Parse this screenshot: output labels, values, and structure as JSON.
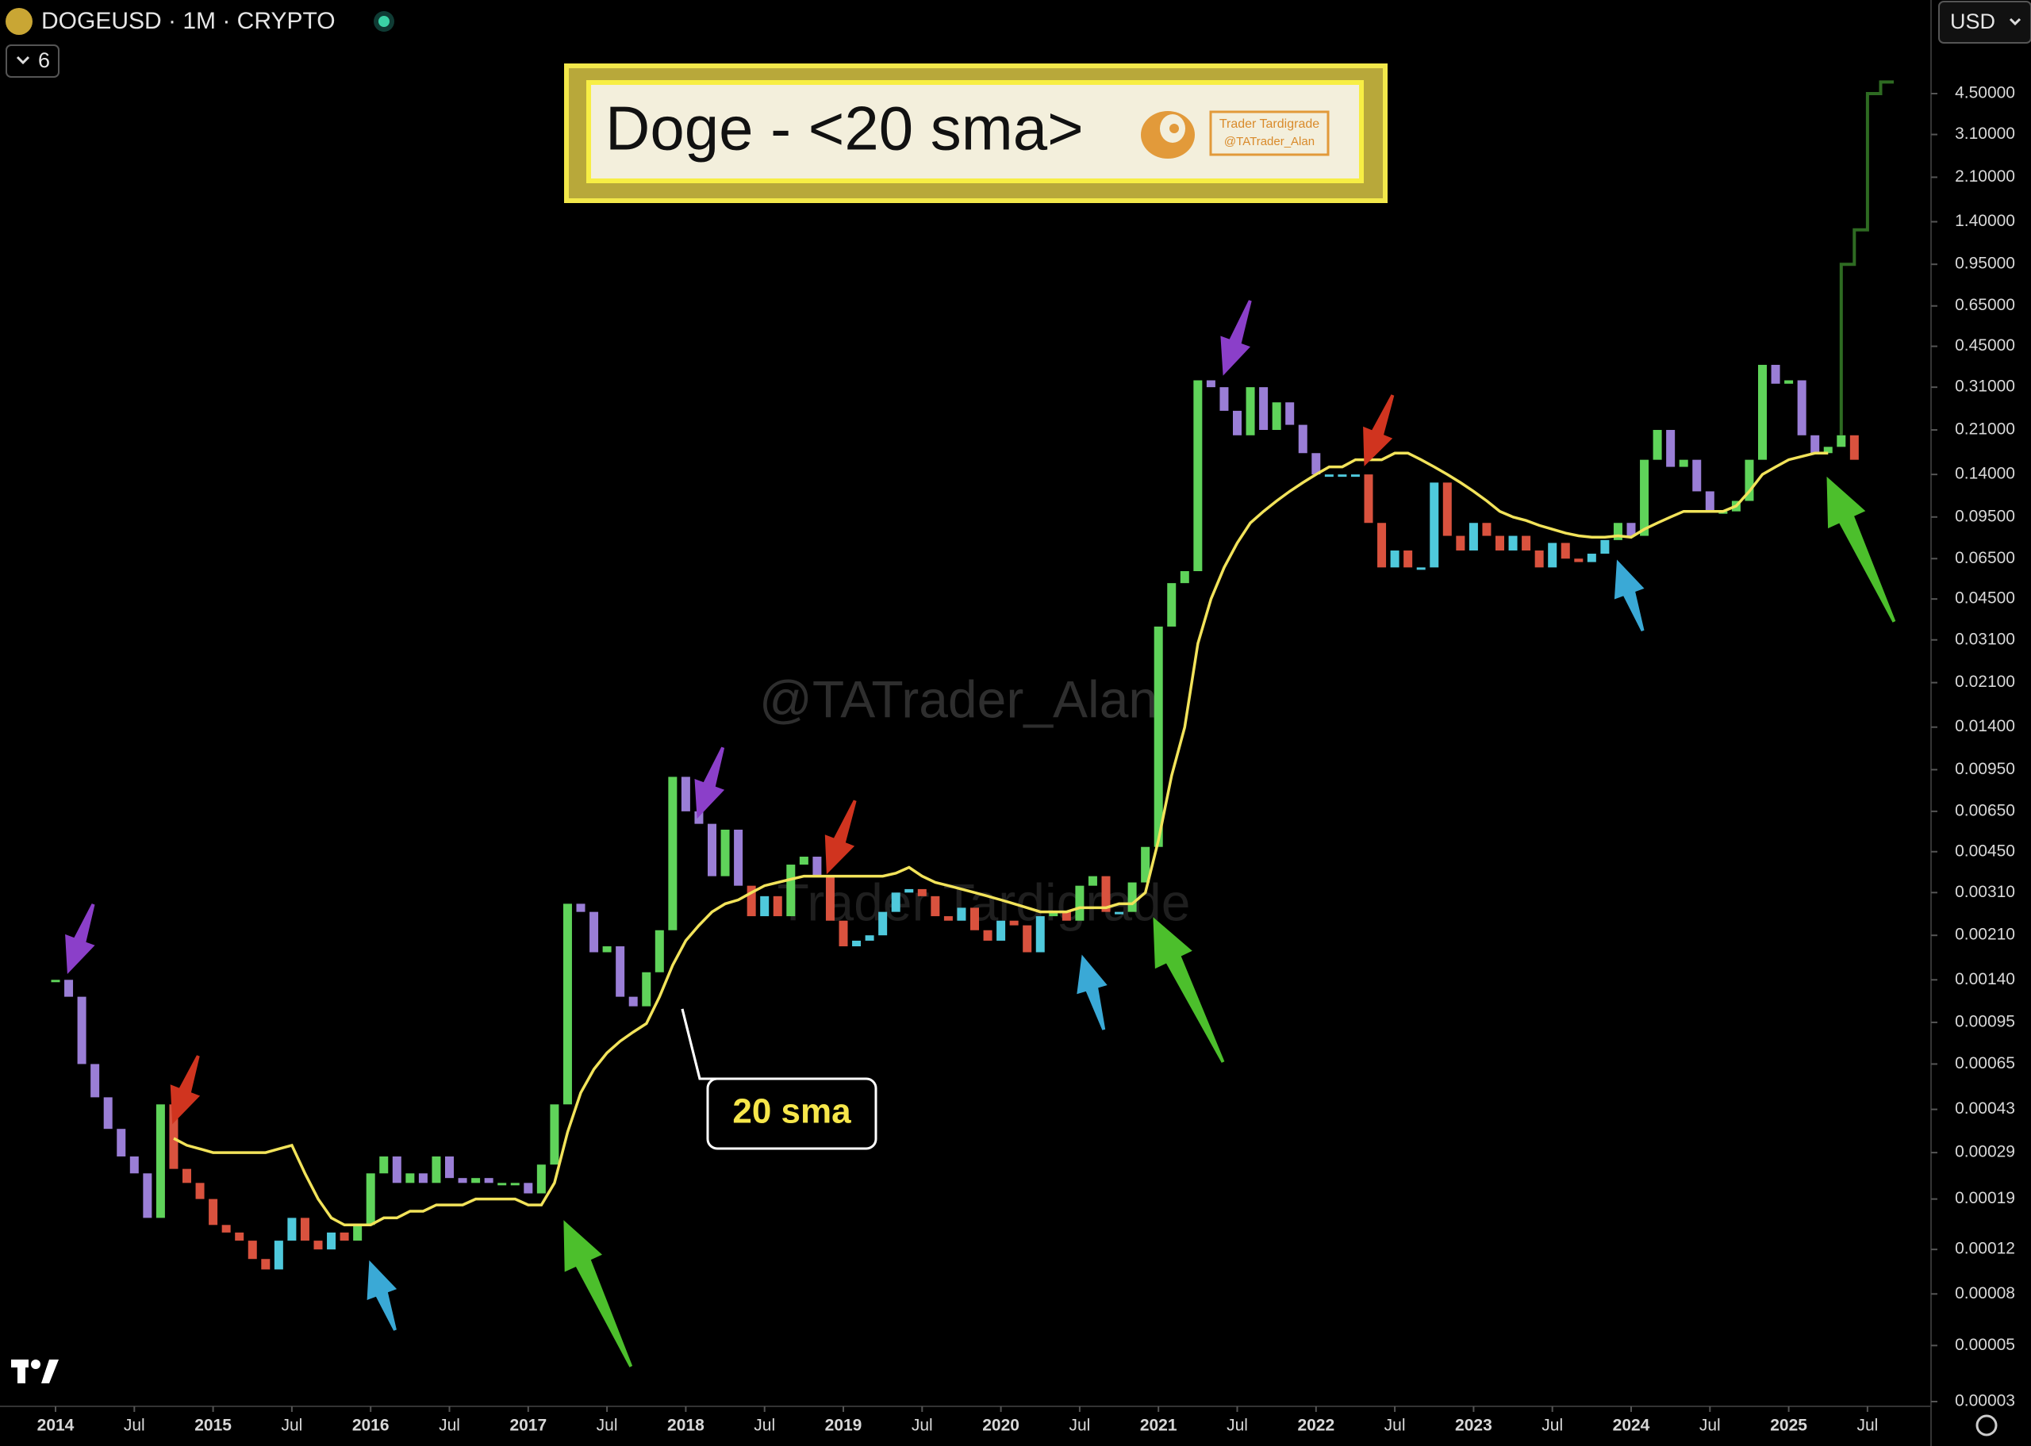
{
  "chart_data": {
    "type": "candlestick",
    "symbol": "DOGEUSD · 1M · CRYPTO",
    "indicators_count": "6",
    "currency": "USD",
    "title": "Doge - <20 sma>",
    "logo_name": "Trader Tardigrade",
    "logo_handle": "@TATrader_Alan",
    "watermark": "@TATrader_Alan",
    "watermark_2": "Trader Tardigrade",
    "sma_label": "20 sma",
    "log_scale": true,
    "grid": false,
    "sma_color": "#f2e35a",
    "colors": {
      "up_above": "#5fd35a",
      "down_above": "#9a7ed6",
      "down_below": "#d9523e",
      "up_below": "#4fc9dc"
    },
    "x": [
      "2014-01",
      "2014-02",
      "2014-03",
      "2014-04",
      "2014-05",
      "2014-06",
      "2014-07",
      "2014-08",
      "2014-09",
      "2014-10",
      "2014-11",
      "2014-12",
      "2015-01",
      "2015-02",
      "2015-03",
      "2015-04",
      "2015-05",
      "2015-06",
      "2015-07",
      "2015-08",
      "2015-09",
      "2015-10",
      "2015-11",
      "2015-12",
      "2016-01",
      "2016-02",
      "2016-03",
      "2016-04",
      "2016-05",
      "2016-06",
      "2016-07",
      "2016-08",
      "2016-09",
      "2016-10",
      "2016-11",
      "2016-12",
      "2017-01",
      "2017-02",
      "2017-03",
      "2017-04",
      "2017-05",
      "2017-06",
      "2017-07",
      "2017-08",
      "2017-09",
      "2017-10",
      "2017-11",
      "2017-12",
      "2018-01",
      "2018-02",
      "2018-03",
      "2018-04",
      "2018-05",
      "2018-06",
      "2018-07",
      "2018-08",
      "2018-09",
      "2018-10",
      "2018-11",
      "2018-12",
      "2019-01",
      "2019-02",
      "2019-03",
      "2019-04",
      "2019-05",
      "2019-06",
      "2019-07",
      "2019-08",
      "2019-09",
      "2019-10",
      "2019-11",
      "2019-12",
      "2020-01",
      "2020-02",
      "2020-03",
      "2020-04",
      "2020-05",
      "2020-06",
      "2020-07",
      "2020-08",
      "2020-09",
      "2020-10",
      "2020-11",
      "2020-12",
      "2021-01",
      "2021-02",
      "2021-03",
      "2021-04",
      "2021-05",
      "2021-06",
      "2021-07",
      "2021-08",
      "2021-09",
      "2021-10",
      "2021-11",
      "2021-12",
      "2022-01",
      "2022-02",
      "2022-03",
      "2022-04",
      "2022-05",
      "2022-06",
      "2022-07",
      "2022-08",
      "2022-09",
      "2022-10",
      "2022-11",
      "2022-12",
      "2023-01",
      "2023-02",
      "2023-03",
      "2023-04",
      "2023-05",
      "2023-06",
      "2023-07",
      "2023-08",
      "2023-09",
      "2023-10",
      "2023-11",
      "2023-12",
      "2024-01",
      "2024-02",
      "2024-03",
      "2024-04",
      "2024-05",
      "2024-06",
      "2024-07",
      "2024-08",
      "2024-09",
      "2024-10",
      "2024-11",
      "2024-12",
      "2025-01",
      "2025-02",
      "2025-03",
      "2025-04",
      "2025-05",
      "2025-06"
    ],
    "close": [
      0.0014,
      0.0012,
      0.00065,
      0.00048,
      0.00036,
      0.00028,
      0.00024,
      0.00016,
      0.00045,
      0.00025,
      0.00022,
      0.00019,
      0.00015,
      0.00014,
      0.00013,
      0.00011,
      0.0001,
      0.00013,
      0.00016,
      0.00013,
      0.00012,
      0.00014,
      0.00013,
      0.00015,
      0.00024,
      0.00028,
      0.00022,
      0.00024,
      0.00022,
      0.00028,
      0.00023,
      0.00022,
      0.00023,
      0.00022,
      0.00022,
      0.00022,
      0.0002,
      0.00026,
      0.00045,
      0.0028,
      0.0026,
      0.0018,
      0.0019,
      0.0012,
      0.0011,
      0.0015,
      0.0022,
      0.0089,
      0.0065,
      0.0058,
      0.0036,
      0.0055,
      0.0033,
      0.0025,
      0.003,
      0.0025,
      0.004,
      0.0043,
      0.0036,
      0.0024,
      0.0019,
      0.002,
      0.0021,
      0.0026,
      0.0031,
      0.0032,
      0.003,
      0.0025,
      0.0024,
      0.0027,
      0.0022,
      0.002,
      0.0024,
      0.0023,
      0.0018,
      0.0025,
      0.0026,
      0.0024,
      0.0033,
      0.0036,
      0.0026,
      0.0026,
      0.0034,
      0.0047,
      0.035,
      0.052,
      0.058,
      0.33,
      0.31,
      0.25,
      0.2,
      0.31,
      0.21,
      0.27,
      0.22,
      0.17,
      0.14,
      0.14,
      0.14,
      0.14,
      0.09,
      0.06,
      0.07,
      0.06,
      0.06,
      0.13,
      0.08,
      0.07,
      0.09,
      0.08,
      0.07,
      0.08,
      0.07,
      0.06,
      0.075,
      0.065,
      0.063,
      0.068,
      0.077,
      0.09,
      0.08,
      0.16,
      0.21,
      0.15,
      0.16,
      0.12,
      0.1,
      0.1,
      0.11,
      0.16,
      0.38,
      0.32,
      0.33,
      0.2,
      0.17,
      0.18,
      0.2,
      0.16
    ],
    "sma": [
      null,
      null,
      null,
      null,
      null,
      null,
      null,
      null,
      null,
      0.00033,
      0.00031,
      0.0003,
      0.00029,
      0.00029,
      0.00029,
      0.00029,
      0.00029,
      0.0003,
      0.00031,
      0.00024,
      0.00019,
      0.00016,
      0.00015,
      0.00015,
      0.00015,
      0.00016,
      0.00016,
      0.00017,
      0.00017,
      0.00018,
      0.00018,
      0.00018,
      0.00019,
      0.00019,
      0.00019,
      0.00019,
      0.00018,
      0.00018,
      0.00022,
      0.00035,
      0.0005,
      0.00062,
      0.00072,
      0.0008,
      0.00087,
      0.00094,
      0.0012,
      0.0016,
      0.002,
      0.0023,
      0.0026,
      0.0028,
      0.0029,
      0.0031,
      0.0033,
      0.0034,
      0.0035,
      0.0036,
      0.0036,
      0.0036,
      0.0036,
      0.0036,
      0.0036,
      0.0036,
      0.0037,
      0.0039,
      0.0036,
      0.0034,
      0.0033,
      0.0032,
      0.0031,
      0.003,
      0.0029,
      0.0028,
      0.0027,
      0.0026,
      0.0026,
      0.0026,
      0.0027,
      0.0027,
      0.0027,
      0.0028,
      0.0028,
      0.0031,
      0.005,
      0.009,
      0.014,
      0.03,
      0.045,
      0.06,
      0.075,
      0.09,
      0.1,
      0.11,
      0.12,
      0.13,
      0.14,
      0.15,
      0.15,
      0.16,
      0.16,
      0.16,
      0.17,
      0.17,
      0.16,
      0.15,
      0.14,
      0.13,
      0.12,
      0.11,
      0.1,
      0.095,
      0.092,
      0.088,
      0.085,
      0.082,
      0.08,
      0.079,
      0.079,
      0.08,
      0.079,
      0.085,
      0.09,
      0.095,
      0.1,
      0.1,
      0.1,
      0.1,
      0.105,
      0.12,
      0.14,
      0.15,
      0.16,
      0.165,
      0.17,
      0.17,
      null,
      null
    ],
    "projection": {
      "color": "#2e6b22",
      "x": [
        "2025-05",
        "2025-06",
        "2025-07",
        "2025-08",
        "2025-09"
      ],
      "values": [
        0.2,
        0.95,
        1.3,
        4.5,
        5.0
      ]
    },
    "xticks": [
      {
        "value": "2014-01",
        "label": "2014"
      },
      {
        "value": "2014-07",
        "label": "Jul"
      },
      {
        "value": "2015-01",
        "label": "2015"
      },
      {
        "value": "2015-07",
        "label": "Jul"
      },
      {
        "value": "2016-01",
        "label": "2016"
      },
      {
        "value": "2016-07",
        "label": "Jul"
      },
      {
        "value": "2017-01",
        "label": "2017"
      },
      {
        "value": "2017-07",
        "label": "Jul"
      },
      {
        "value": "2018-01",
        "label": "2018"
      },
      {
        "value": "2018-07",
        "label": "Jul"
      },
      {
        "value": "2019-01",
        "label": "2019"
      },
      {
        "value": "2019-07",
        "label": "Jul"
      },
      {
        "value": "2020-01",
        "label": "2020"
      },
      {
        "value": "2020-07",
        "label": "Jul"
      },
      {
        "value": "2021-01",
        "label": "2021"
      },
      {
        "value": "2021-07",
        "label": "Jul"
      },
      {
        "value": "2022-01",
        "label": "2022"
      },
      {
        "value": "2022-07",
        "label": "Jul"
      },
      {
        "value": "2023-01",
        "label": "2023"
      },
      {
        "value": "2023-07",
        "label": "Jul"
      },
      {
        "value": "2024-01",
        "label": "2024"
      },
      {
        "value": "2024-07",
        "label": "Jul"
      },
      {
        "value": "2025-01",
        "label": "2025"
      },
      {
        "value": "2025-07",
        "label": "Jul"
      }
    ],
    "ylim": [
      3e-05,
      6.6
    ],
    "yticks": [
      {
        "value": 3e-05,
        "label": "0.00003"
      },
      {
        "value": 5e-05,
        "label": "0.00005"
      },
      {
        "value": 8e-05,
        "label": "0.00008"
      },
      {
        "value": 0.00012,
        "label": "0.00012"
      },
      {
        "value": 0.00019,
        "label": "0.00019"
      },
      {
        "value": 0.00029,
        "label": "0.00029"
      },
      {
        "value": 0.00043,
        "label": "0.00043"
      },
      {
        "value": 0.00065,
        "label": "0.00065"
      },
      {
        "value": 0.00095,
        "label": "0.00095"
      },
      {
        "value": 0.0014,
        "label": "0.00140"
      },
      {
        "value": 0.0021,
        "label": "0.00210"
      },
      {
        "value": 0.0031,
        "label": "0.00310"
      },
      {
        "value": 0.0045,
        "label": "0.00450"
      },
      {
        "value": 0.0065,
        "label": "0.00650"
      },
      {
        "value": 0.0095,
        "label": "0.00950"
      },
      {
        "value": 0.014,
        "label": "0.01400"
      },
      {
        "value": 0.021,
        "label": "0.02100"
      },
      {
        "value": 0.031,
        "label": "0.03100"
      },
      {
        "value": 0.045,
        "label": "0.04500"
      },
      {
        "value": 0.065,
        "label": "0.06500"
      },
      {
        "value": 0.095,
        "label": "0.09500"
      },
      {
        "value": 0.14,
        "label": "0.14000"
      },
      {
        "value": 0.21,
        "label": "0.21000"
      },
      {
        "value": 0.31,
        "label": "0.31000"
      },
      {
        "value": 0.45,
        "label": "0.45000"
      },
      {
        "value": 0.65,
        "label": "0.65000"
      },
      {
        "value": 0.95,
        "label": "0.95000"
      },
      {
        "value": 1.4,
        "label": "1.40000"
      },
      {
        "value": 2.1,
        "label": "2.10000"
      },
      {
        "value": 3.1,
        "label": "3.10000"
      },
      {
        "value": 4.5,
        "label": "4.50000"
      }
    ]
  }
}
